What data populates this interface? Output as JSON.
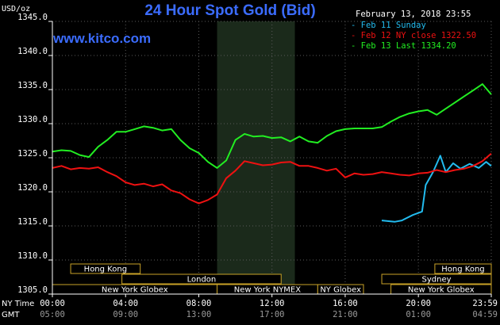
{
  "chart_data": {
    "type": "line",
    "title": "24 Hour Spot Gold (Bid)",
    "site": "www.kitco.com",
    "ylabel": "USD/oz",
    "datestamp": "February 13, 2018 23:55",
    "ylim": [
      1305,
      1345
    ],
    "y_ticks": [
      "1305.0",
      "1310.0",
      "1315.0",
      "1320.0",
      "1325.0",
      "1330.0",
      "1335.0",
      "1340.0",
      "1345.0"
    ],
    "x_axis_rows": [
      {
        "label": "NY Time",
        "ticks": [
          "00:00",
          "04:00",
          "08:00",
          "12:00",
          "16:00",
          "20:00",
          "23:59"
        ]
      },
      {
        "label": "GMT",
        "ticks": [
          "05:00",
          "09:00",
          "13:00",
          "17:00",
          "21:00",
          "01:00",
          "04:59"
        ]
      }
    ],
    "x_hours": [
      0,
      4,
      8,
      12,
      16,
      20,
      23.983
    ],
    "highlight_hours": [
      9,
      13.25
    ],
    "sessions": [
      {
        "label": "Hong Kong",
        "start": 1.0,
        "end": 4.8,
        "row": 0
      },
      {
        "label": "Hong Kong",
        "start": 20.9,
        "end": 25.0,
        "row": 0
      },
      {
        "label": "London",
        "start": 3.8,
        "end": 12.5,
        "row": 1
      },
      {
        "label": "Sydney",
        "start": 18.0,
        "end": 26.0,
        "row": 1
      },
      {
        "label": "New York Globex",
        "start": 0.0,
        "end": 9.0,
        "row": 2
      },
      {
        "label": "New York NYMEX",
        "start": 9.0,
        "end": 14.5,
        "row": 2
      },
      {
        "label": "NY Globex",
        "start": 14.5,
        "end": 17.0,
        "row": 2
      },
      {
        "label": "New York Globex",
        "start": 18.5,
        "end": 26.0,
        "row": 2
      }
    ],
    "series": [
      {
        "name": "Feb 11 Sunday",
        "legend": "Feb 11 Sunday",
        "color": "#22bbee",
        "x": [
          18.0,
          18.7,
          19.1,
          19.7,
          20.2,
          20.4,
          20.8,
          21.2,
          21.5,
          21.9,
          22.3,
          22.8,
          23.3,
          23.7,
          23.98
        ],
        "y": [
          1315.8,
          1315.6,
          1315.8,
          1316.6,
          1317.1,
          1321.0,
          1322.9,
          1325.3,
          1322.9,
          1324.2,
          1323.4,
          1324.1,
          1323.5,
          1324.4,
          1323.8
        ]
      },
      {
        "name": "Feb 12 NY close",
        "legend": "Feb 12 NY close 1322.50",
        "color": "#ee1111",
        "x": [
          0,
          0.5,
          1,
          1.5,
          2,
          2.5,
          3,
          3.5,
          4,
          4.5,
          5,
          5.5,
          6,
          6.5,
          7,
          7.5,
          8,
          8.5,
          9,
          9.5,
          10,
          10.5,
          11,
          11.5,
          12,
          12.5,
          13,
          13.5,
          14,
          14.5,
          15,
          15.5,
          16,
          16.5,
          17,
          17.5,
          18,
          18.5,
          19,
          19.5,
          20,
          20.5,
          21,
          21.5,
          22,
          22.5,
          23,
          23.5,
          23.98
        ],
        "y": [
          1323.5,
          1323.8,
          1323.3,
          1323.5,
          1323.4,
          1323.6,
          1322.9,
          1322.3,
          1321.4,
          1321.0,
          1321.2,
          1320.8,
          1321.1,
          1320.2,
          1319.8,
          1318.9,
          1318.3,
          1318.8,
          1319.6,
          1322.0,
          1323.1,
          1324.5,
          1324.2,
          1323.9,
          1324.0,
          1324.3,
          1324.4,
          1323.8,
          1323.8,
          1323.5,
          1323.1,
          1323.4,
          1322.1,
          1322.7,
          1322.5,
          1322.6,
          1322.9,
          1322.7,
          1322.5,
          1322.4,
          1322.7,
          1322.8,
          1323.2,
          1322.9,
          1323.2,
          1323.4,
          1323.8,
          1324.5,
          1325.6
        ]
      },
      {
        "name": "Feb 13 Last",
        "legend": "Feb 13 Last 1334.20",
        "color": "#22ee22",
        "x": [
          0,
          0.5,
          1,
          1.5,
          2,
          2.5,
          3,
          3.5,
          4,
          4.5,
          5,
          5.5,
          6,
          6.5,
          7,
          7.5,
          8,
          8.5,
          9,
          9.5,
          10,
          10.5,
          11,
          11.5,
          12,
          12.5,
          13,
          13.5,
          14,
          14.5,
          15,
          15.5,
          16,
          16.5,
          17,
          17.5,
          18,
          18.5,
          19,
          19.5,
          20,
          20.5,
          21,
          21.5,
          22,
          22.5,
          23,
          23.5,
          23.98
        ],
        "y": [
          1325.9,
          1326.1,
          1326.0,
          1325.4,
          1325.1,
          1326.6,
          1327.6,
          1328.8,
          1328.8,
          1329.2,
          1329.6,
          1329.4,
          1329.0,
          1329.2,
          1327.6,
          1326.4,
          1325.7,
          1324.4,
          1323.5,
          1324.6,
          1327.6,
          1328.5,
          1328.1,
          1328.2,
          1327.9,
          1328.0,
          1327.4,
          1328.1,
          1327.4,
          1327.2,
          1328.2,
          1328.9,
          1329.2,
          1329.3,
          1329.3,
          1329.3,
          1329.5,
          1330.3,
          1331.0,
          1331.5,
          1331.8,
          1332.0,
          1331.3,
          1332.2,
          1333.1,
          1334.0,
          1334.9,
          1335.8,
          1334.3
        ]
      }
    ]
  }
}
